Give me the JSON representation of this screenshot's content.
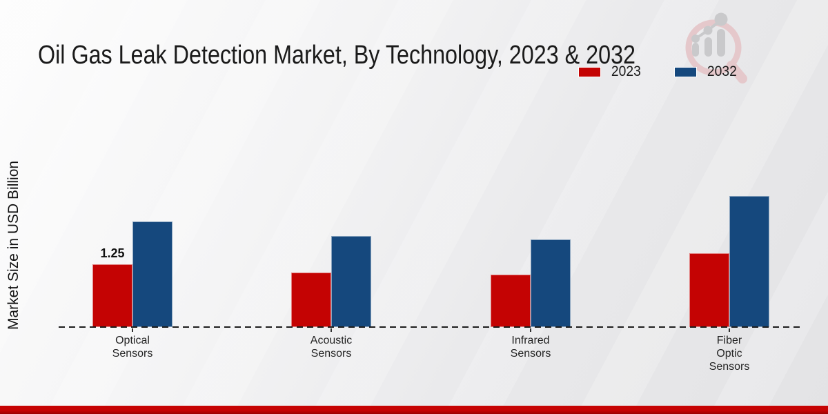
{
  "title": "Oil Gas Leak Detection Market, By Technology, 2023 & 2032",
  "legend": [
    {
      "label": "2023",
      "color": "#c40303"
    },
    {
      "label": "2032",
      "color": "#15487d"
    }
  ],
  "chart_data": {
    "type": "bar",
    "title": "Oil Gas Leak Detection Market, By Technology, 2023 & 2032",
    "ylabel": "Market Size in USD Billion",
    "xlabel": "",
    "categories": [
      "Optical Sensors",
      "Acoustic Sensors",
      "Infrared Sensors",
      "Fiber Optic Sensors"
    ],
    "category_label_lines": [
      [
        "Optical",
        "Sensors"
      ],
      [
        "Acoustic",
        "Sensors"
      ],
      [
        "Infrared",
        "Sensors"
      ],
      [
        "Fiber",
        "Optic",
        "Sensors"
      ]
    ],
    "series": [
      {
        "name": "2023",
        "color": "#c40303",
        "values": [
          1.25,
          1.08,
          1.05,
          1.47
        ]
      },
      {
        "name": "2032",
        "color": "#15487d",
        "values": [
          2.1,
          1.81,
          1.75,
          2.61
        ]
      }
    ],
    "data_labels": [
      {
        "series": "2023",
        "category": "Optical Sensors",
        "text": "1.25"
      }
    ],
    "ylim": [
      0,
      3
    ],
    "grid": false,
    "axis_style": "dashed-baseline",
    "legend_position": "top-right"
  },
  "branding": {
    "logo_icon": "magnifier-bar-chart-logo",
    "logo_ring_color": "#e5c8cb",
    "logo_bars_color": "#c9c9cb"
  },
  "footer": {
    "accent_color": "#c60303"
  }
}
